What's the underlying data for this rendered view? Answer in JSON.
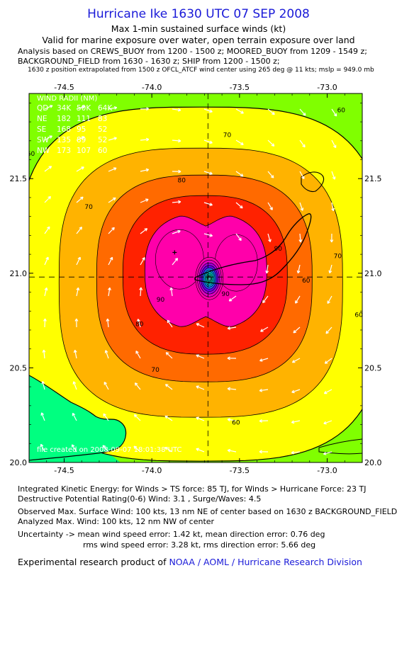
{
  "title": "Hurricane Ike 1630 UTC 07 SEP 2008",
  "subtitle1": "Max 1-min sustained surface winds (kt)",
  "subtitle2": "Valid for marine exposure over water, open terrain exposure over land",
  "analysis_lines": [
    "Analysis based on  CREWS_BUOY from 1200 - 1500 z;  MOORED_BUOY from 1209 - 1549 z;",
    "BACKGROUND_FIELD from 1630 - 1630 z;  SHIP from 1200 - 1500 z;"
  ],
  "position_note": "1630 z position extrapolated from 1500 z OFCL_ATCF wind center using 265 deg @ 11 kts; mslp = 949.0 mb",
  "map": {
    "lon_range": [
      -74.7,
      -72.8
    ],
    "lat_range": [
      20.0,
      21.95
    ],
    "lon_ticks": [
      "-74.5",
      "-74.0",
      "-73.5",
      "-73.0"
    ],
    "lon_tick_values": [
      -74.5,
      -74.0,
      -73.5,
      -73.0
    ],
    "lat_ticks": [
      "20.0",
      "20.5",
      "21.0",
      "21.5"
    ],
    "lat_tick_values": [
      20.0,
      20.5,
      21.0,
      21.5
    ],
    "center": {
      "lon": -73.68,
      "lat": 20.98
    },
    "max_wind_marker": {
      "lon": -73.87,
      "lat": 21.11
    },
    "contour_labels": [
      {
        "text": "60",
        "lon": -72.92,
        "lat": 21.85
      },
      {
        "text": "60",
        "lon": -74.69,
        "lat": 21.62
      },
      {
        "text": "70",
        "lon": -73.57,
        "lat": 21.72
      },
      {
        "text": "80",
        "lon": -73.83,
        "lat": 21.48
      },
      {
        "text": "70",
        "lon": -74.36,
        "lat": 21.34
      },
      {
        "text": "90",
        "lon": -73.28,
        "lat": 21.12
      },
      {
        "text": "70",
        "lon": -72.94,
        "lat": 21.08
      },
      {
        "text": "60",
        "lon": -72.82,
        "lat": 20.77
      },
      {
        "text": "60",
        "lon": -73.12,
        "lat": 20.95
      },
      {
        "text": "90",
        "lon": -73.95,
        "lat": 20.85
      },
      {
        "text": "80",
        "lon": -74.07,
        "lat": 20.72
      },
      {
        "text": "70",
        "lon": -73.98,
        "lat": 20.48
      },
      {
        "text": "60",
        "lon": -73.52,
        "lat": 20.2
      },
      {
        "text": "90",
        "lon": -73.58,
        "lat": 20.88
      }
    ],
    "wind_radii": {
      "header": "WIND RADII (NM)",
      "rows": [
        {
          "q": "QD",
          "r34": "34K",
          "r50": "50K",
          "r64": "64K"
        },
        {
          "q": "NE",
          "r34": "182",
          "r50": "111",
          "r64": "83"
        },
        {
          "q": "SE",
          "r34": "168",
          "r50": "95",
          "r64": "52"
        },
        {
          "q": "SW",
          "r34": "135",
          "r50": "89",
          "r64": "52"
        },
        {
          "q": "NW",
          "r34": "173",
          "r50": "107",
          "r64": "60"
        }
      ]
    },
    "watermark": "file   created on 2008-09-07 18:01:38 UTC",
    "colors": {
      "band40": "#00ff80",
      "band50": "#80ff00",
      "band60": "#ffff00",
      "band70": "#ffb300",
      "band80": "#ff6a00",
      "band90": "#ff2200",
      "band100": "#ff00aa",
      "core": "#00d0d0",
      "land_line": "#000000",
      "arrow": "#ffffff"
    }
  },
  "footer": {
    "ike": "Integrated Kinetic Energy:  for Winds > TS force: 85 TJ,  for Winds > Hurricane Force: 23 TJ",
    "dpr": "Destructive Potential Rating(0-6)   Wind: 3.1 , Surge/Waves: 4.5",
    "obs": "Observed Max. Surface Wind: 100 kts, 13 nm NE of center based on 1630 z BACKGROUND_FIELD",
    "ana": "Analyzed Max. Wind: 100 kts, 12 nm NW of center",
    "unc1": "Uncertainty -> mean wind speed error: 1.42 kt,   mean direction error: 0.76 deg",
    "unc2": "rms wind speed error: 3.28 kt,   rms direction error: 5.66 deg",
    "credit_prefix": "Experimental research product of ",
    "credit_link": "NOAA / AOML / Hurricane Research Division"
  }
}
